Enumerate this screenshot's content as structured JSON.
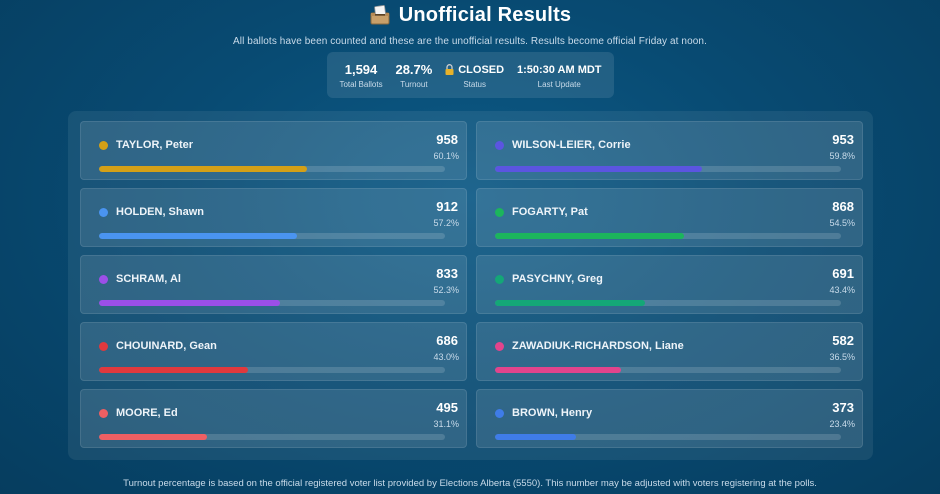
{
  "header": {
    "title": "Unofficial Results",
    "subtitle": "All ballots have been counted and these are the unofficial results. Results become official Friday at noon."
  },
  "stats": {
    "total_ballots": {
      "value": "1,594",
      "label": "Total Ballots"
    },
    "turnout": {
      "value": "28.7%",
      "label": "Turnout"
    },
    "status": {
      "value": "CLOSED",
      "label": "Status"
    },
    "last_update": {
      "value": "1:50:30 AM MDT",
      "label": "Last Update"
    }
  },
  "candidates": [
    {
      "name": "TAYLOR, Peter",
      "votes": "958",
      "percent": "60.1%",
      "share": 0.601,
      "color": "#d4a017"
    },
    {
      "name": "WILSON-LEIER, Corrie",
      "votes": "953",
      "percent": "59.8%",
      "share": 0.598,
      "color": "#5b55e0"
    },
    {
      "name": "HOLDEN, Shawn",
      "votes": "912",
      "percent": "57.2%",
      "share": 0.572,
      "color": "#4a94f0"
    },
    {
      "name": "FOGARTY, Pat",
      "votes": "868",
      "percent": "54.5%",
      "share": 0.545,
      "color": "#1cb55c"
    },
    {
      "name": "SCHRAM, Al",
      "votes": "833",
      "percent": "52.3%",
      "share": 0.523,
      "color": "#9b4fe8"
    },
    {
      "name": "PASYCHNY, Greg",
      "votes": "691",
      "percent": "43.4%",
      "share": 0.434,
      "color": "#14a777"
    },
    {
      "name": "CHOUINARD, Gean",
      "votes": "686",
      "percent": "43.0%",
      "share": 0.43,
      "color": "#e0393d"
    },
    {
      "name": "ZAWADIUK-RICHARDSON, Liane",
      "votes": "582",
      "percent": "36.5%",
      "share": 0.365,
      "color": "#e2448c"
    },
    {
      "name": "MOORE, Ed",
      "votes": "495",
      "percent": "31.1%",
      "share": 0.311,
      "color": "#ee5f63"
    },
    {
      "name": "BROWN, Henry",
      "votes": "373",
      "percent": "23.4%",
      "share": 0.234,
      "color": "#3f7ce8"
    }
  ],
  "footer": {
    "note": "Turnout percentage is based on the official registered voter list provided by Elections Alberta (5550). This number may be adjusted with voters registering at the polls."
  }
}
